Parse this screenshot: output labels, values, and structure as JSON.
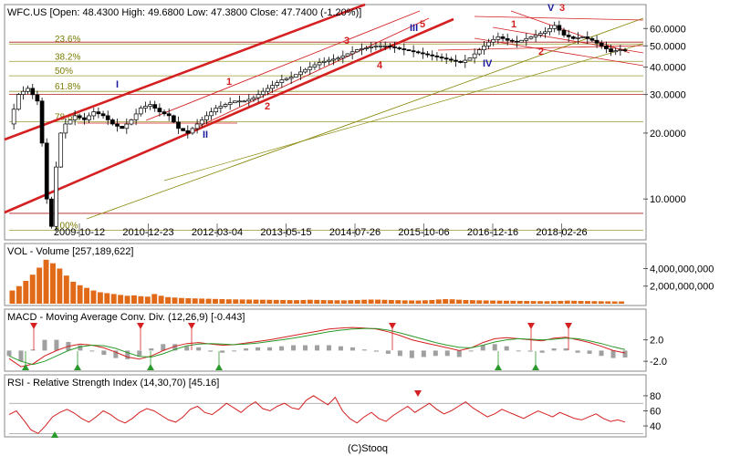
{
  "chart_data": [
    {
      "type": "candlestick",
      "title": "WFC.US [Open: 48.4300  High: 49.6800  Low: 47.3800  Close: 47.7400  (-1.20%)]",
      "scale": "log",
      "ylim": [
        6.7,
        75
      ],
      "y_ticks": [
        {
          "label": "60.0000",
          "v": 60
        },
        {
          "label": "50.0000",
          "v": 50
        },
        {
          "label": "40.0000",
          "v": 40
        },
        {
          "label": "30.0000",
          "v": 30
        },
        {
          "label": "20.0000",
          "v": 20
        },
        {
          "label": "10.0000",
          "v": 10
        }
      ],
      "x_ticks": [
        "2009-10-12",
        "2010-12-23",
        "2012-03-04",
        "2013-05-15",
        "2014-07-26",
        "2015-10-06",
        "2016-12-16",
        "2018-02-26"
      ],
      "fib_levels": [
        {
          "label": "23.6%",
          "v": 51
        },
        {
          "label": "38.2%",
          "v": 42.5
        },
        {
          "label": "50%",
          "v": 36.5
        },
        {
          "label": "61.8%",
          "v": 31
        },
        {
          "label": "78.6%",
          "v": 22.5
        },
        {
          "label": "100%",
          "v": 7.2
        }
      ],
      "wave_labels": [
        {
          "text": "I",
          "color": "#1a1a9e"
        },
        {
          "text": "II",
          "color": "#1a1a9e"
        },
        {
          "text": "1",
          "color": "#d42020"
        },
        {
          "text": "2",
          "color": "#d42020"
        },
        {
          "text": "3",
          "color": "#d42020"
        },
        {
          "text": "4",
          "color": "#d42020"
        },
        {
          "text": "5",
          "color": "#d42020"
        },
        {
          "text": "III",
          "color": "#1a1a9e"
        },
        {
          "text": "IV",
          "color": "#1a1a9e"
        },
        {
          "text": "1",
          "color": "#d42020"
        },
        {
          "text": "2",
          "color": "#d42020"
        },
        {
          "text": "V",
          "color": "#1a1a9e"
        },
        {
          "text": "3",
          "color": "#d42020"
        }
      ],
      "price_path": [
        [
          0,
          22
        ],
        [
          2,
          30
        ],
        [
          4,
          32
        ],
        [
          6,
          28
        ],
        [
          7,
          18
        ],
        [
          8,
          10
        ],
        [
          9,
          7.5
        ],
        [
          10,
          14
        ],
        [
          11,
          20
        ],
        [
          12,
          22
        ],
        [
          14,
          24
        ],
        [
          16,
          23
        ],
        [
          18,
          25
        ],
        [
          20,
          24
        ],
        [
          22,
          22
        ],
        [
          24,
          21
        ],
        [
          26,
          23
        ],
        [
          28,
          26
        ],
        [
          30,
          27
        ],
        [
          32,
          25
        ],
        [
          34,
          24
        ],
        [
          36,
          21
        ],
        [
          38,
          20
        ],
        [
          40,
          22
        ],
        [
          42,
          24
        ],
        [
          44,
          26
        ],
        [
          46,
          27
        ],
        [
          48,
          28
        ],
        [
          50,
          28
        ],
        [
          52,
          29
        ],
        [
          54,
          31
        ],
        [
          56,
          33
        ],
        [
          58,
          35
        ],
        [
          60,
          36
        ],
        [
          62,
          38
        ],
        [
          64,
          40
        ],
        [
          66,
          42
        ],
        [
          68,
          43
        ],
        [
          70,
          44
        ],
        [
          72,
          46
        ],
        [
          74,
          48
        ],
        [
          76,
          49
        ],
        [
          78,
          50
        ],
        [
          80,
          50
        ],
        [
          82,
          49
        ],
        [
          84,
          48
        ],
        [
          86,
          47
        ],
        [
          88,
          46
        ],
        [
          90,
          45
        ],
        [
          92,
          44
        ],
        [
          94,
          43
        ],
        [
          96,
          42
        ],
        [
          98,
          44
        ],
        [
          100,
          48
        ],
        [
          102,
          52
        ],
        [
          104,
          55
        ],
        [
          106,
          53
        ],
        [
          108,
          52
        ],
        [
          110,
          54
        ],
        [
          112,
          56
        ],
        [
          114,
          58
        ],
        [
          116,
          62
        ],
        [
          118,
          56
        ],
        [
          120,
          54
        ],
        [
          122,
          55
        ],
        [
          124,
          53
        ],
        [
          126,
          50
        ],
        [
          128,
          47
        ],
        [
          130,
          48
        ],
        [
          131,
          47.74
        ]
      ]
    },
    {
      "type": "bar",
      "title": "VOL - Volume [257,189,622]",
      "y_ticks": [
        {
          "label": "4,000,000,000",
          "v": 4000000000
        },
        {
          "label": "2,000,000,000",
          "v": 2000000000
        }
      ],
      "ylim": [
        0,
        5500000000
      ],
      "values": [
        1500000000,
        2000000000,
        2600000000,
        3300000000,
        4100000000,
        5000000000,
        4600000000,
        4000000000,
        3200000000,
        2500000000,
        2100000000,
        1800000000,
        1500000000,
        1300000000,
        1200000000,
        1100000000,
        1000000000,
        900000000,
        950000000,
        850000000,
        800000000,
        1100000000,
        900000000,
        750000000,
        700000000,
        650000000,
        620000000,
        600000000,
        580000000,
        560000000,
        540000000,
        520000000,
        500000000,
        490000000,
        480000000,
        470000000,
        460000000,
        450000000,
        440000000,
        430000000,
        420000000,
        410000000,
        400000000,
        420000000,
        450000000,
        430000000,
        410000000,
        400000000,
        390000000,
        380000000,
        400000000,
        420000000,
        450000000,
        470000000,
        460000000,
        440000000,
        420000000,
        400000000,
        380000000,
        370000000,
        360000000,
        390000000,
        420000000,
        480000000,
        520000000,
        500000000,
        450000000,
        420000000,
        400000000,
        380000000,
        370000000,
        360000000,
        350000000,
        340000000,
        330000000,
        320000000,
        310000000,
        300000000,
        290000000,
        280000000,
        300000000,
        320000000,
        350000000,
        330000000,
        310000000,
        300000000,
        290000000,
        280000000,
        270000000,
        260000000,
        257189622
      ]
    },
    {
      "type": "line",
      "title": "MACD - Moving Average Conv. Div. (12,26,9) [-0.443]",
      "y_ticks": [
        {
          "label": "2.0",
          "v": 2
        },
        {
          "label": "-2.0",
          "v": -2
        }
      ],
      "ylim": [
        -3.5,
        5.5
      ],
      "series": [
        {
          "color": "#d42020",
          "values": [
            -1.5,
            -3,
            -2.5,
            -1,
            0,
            0.8,
            1.2,
            1,
            0.5,
            -0.3,
            -1.2,
            -1.6,
            -1,
            0,
            0.8,
            1.3,
            1.5,
            1.2,
            1,
            1.1,
            1.4,
            1.7,
            2,
            2.4,
            2.8,
            3.2,
            3.6,
            4,
            4.2,
            4.3,
            4.2,
            4,
            3.5,
            2.8,
            2,
            1.5,
            1,
            0.5,
            0,
            0.5,
            1.5,
            2.2,
            2.4,
            2.2,
            2,
            1.8,
            2.3,
            2.5,
            2,
            1.5,
            0.8,
            0,
            -0.443
          ]
        },
        {
          "color": "#2a9a2a",
          "values": [
            -1,
            -2,
            -2.6,
            -2,
            -1,
            0,
            0.7,
            1,
            0.9,
            0.4,
            -0.4,
            -1.1,
            -1.2,
            -0.6,
            0.2,
            0.9,
            1.2,
            1.3,
            1.2,
            1.1,
            1.2,
            1.4,
            1.7,
            2,
            2.3,
            2.7,
            3.1,
            3.5,
            3.8,
            4,
            4.1,
            4.1,
            3.8,
            3.3,
            2.7,
            2.1,
            1.5,
            1,
            0.6,
            0.5,
            1,
            1.6,
            2,
            2.2,
            2.1,
            2,
            2.1,
            2.3,
            2.2,
            1.8,
            1.3,
            0.7,
            0.2
          ]
        }
      ]
    },
    {
      "type": "line",
      "title": "RSI - Relative Strength Index (14,30,70) [45.16]",
      "y_ticks": [
        {
          "label": "80",
          "v": 80
        },
        {
          "label": "60",
          "v": 60
        },
        {
          "label": "40",
          "v": 40
        }
      ],
      "ylim": [
        28,
        92
      ],
      "levels": [
        70,
        30
      ],
      "series": [
        {
          "color": "#d42020",
          "values": [
            55,
            60,
            48,
            35,
            30,
            40,
            52,
            58,
            62,
            57,
            50,
            45,
            52,
            60,
            55,
            48,
            44,
            50,
            58,
            63,
            60,
            54,
            48,
            45,
            52,
            62,
            66,
            58,
            55,
            62,
            70,
            64,
            58,
            66,
            72,
            63,
            60,
            66,
            70,
            64,
            62,
            74,
            80,
            74,
            68,
            78,
            60,
            50,
            44,
            52,
            58,
            50,
            46,
            54,
            60,
            66,
            58,
            64,
            70,
            62,
            56,
            60,
            66,
            72,
            64,
            58,
            52,
            56,
            62,
            58,
            54,
            50,
            55,
            60,
            56,
            52,
            58,
            54,
            50,
            48,
            52,
            56,
            50,
            46,
            48,
            45.16
          ]
        }
      ]
    }
  ],
  "footer": "(C)Stooq"
}
